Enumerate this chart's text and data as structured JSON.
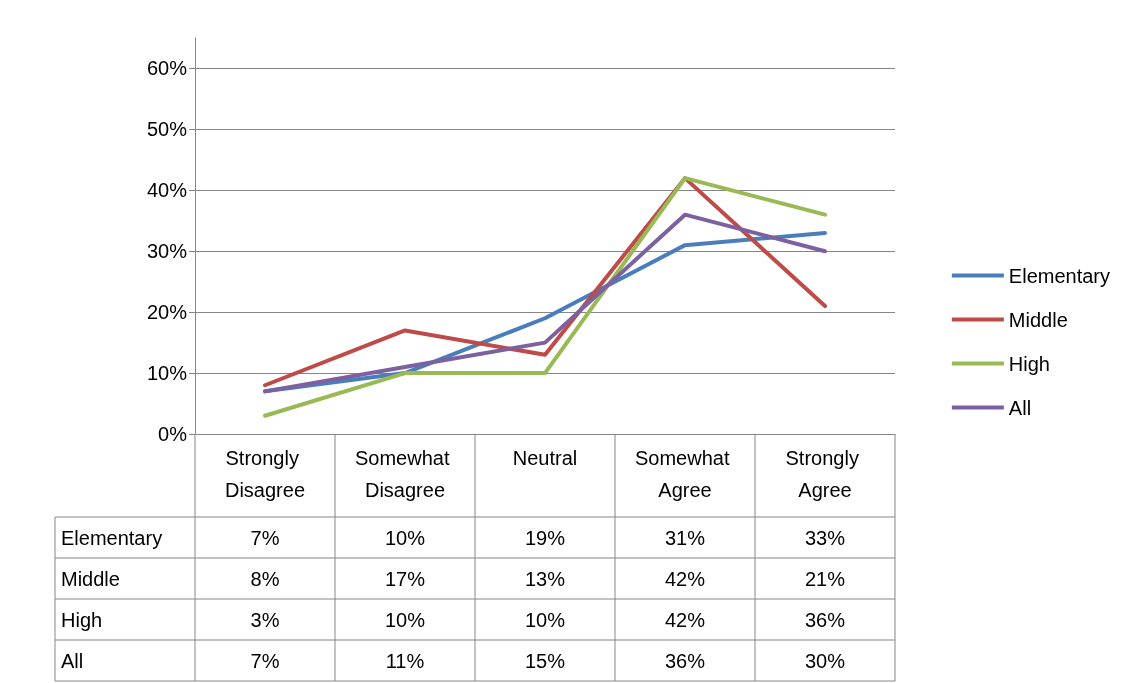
{
  "chart_data": {
    "type": "line",
    "categories": [
      "Strongly Disagree",
      "Somewhat Disagree",
      "Neutral",
      "Somewhat Agree",
      "Strongly Agree"
    ],
    "series": [
      {
        "name": "Elementary",
        "color": "#4a7ebb",
        "values": [
          7,
          10,
          19,
          31,
          33
        ],
        "value_labels": [
          "7%",
          "10%",
          "19%",
          "31%",
          "33%"
        ]
      },
      {
        "name": "Middle",
        "color": "#be4b48",
        "values": [
          8,
          17,
          13,
          42,
          21
        ],
        "value_labels": [
          "8%",
          "17%",
          "13%",
          "42%",
          "21%"
        ]
      },
      {
        "name": "High",
        "color": "#98b954",
        "values": [
          3,
          10,
          10,
          42,
          36
        ],
        "value_labels": [
          "3%",
          "10%",
          "10%",
          "42%",
          "36%"
        ]
      },
      {
        "name": "All",
        "color": "#7d60a0",
        "values": [
          7,
          11,
          15,
          36,
          30
        ],
        "value_labels": [
          "7%",
          "11%",
          "15%",
          "36%",
          "30%"
        ]
      }
    ],
    "ylim": [
      0,
      65
    ],
    "yticks": [
      {
        "value": 0,
        "label": "0%"
      },
      {
        "value": 10,
        "label": "10%"
      },
      {
        "value": 20,
        "label": "20%"
      },
      {
        "value": 30,
        "label": "30%"
      },
      {
        "value": 40,
        "label": "40%"
      },
      {
        "value": 50,
        "label": "50%"
      },
      {
        "value": 60,
        "label": "60%"
      }
    ],
    "grid": "y",
    "legend": "right",
    "marker": "none",
    "line_style": "solid"
  }
}
